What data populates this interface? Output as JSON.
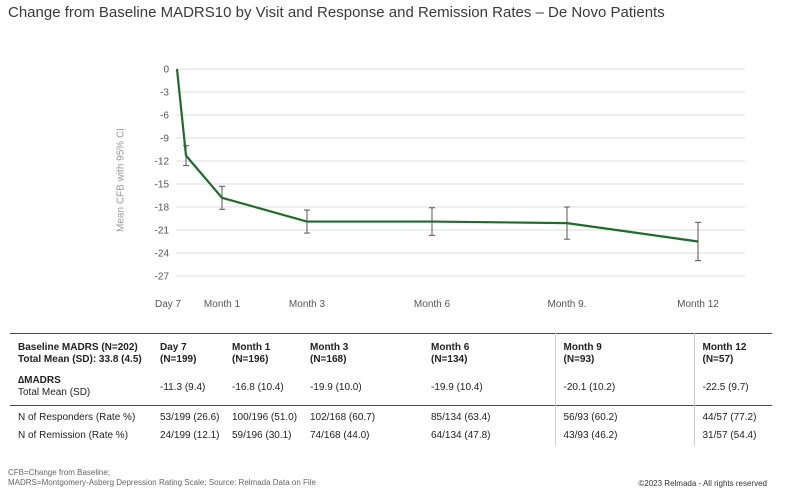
{
  "title": "Change from Baseline MADRS10 by Visit and Response and Remission Rates – De Novo Patients",
  "chart_data": {
    "type": "line",
    "ylabel": "Mean CFB with 95% CI",
    "xlabel": "",
    "categories": [
      "Day 7",
      "Month 1",
      "Month 3",
      "Month 6",
      "Month 9.",
      "Month 12"
    ],
    "x_days": [
      7,
      30,
      90,
      180,
      270,
      365
    ],
    "ylim": [
      -27,
      0
    ],
    "yticks": [
      0,
      -3,
      -6,
      -9,
      -12,
      -15,
      -18,
      -21,
      -24,
      -27
    ],
    "grid": true,
    "series": [
      {
        "name": "Mean CFB",
        "color": "#1f6b2a",
        "baseline": {
          "x": 0,
          "y": 0
        },
        "values": [
          -11.3,
          -16.8,
          -19.9,
          -19.9,
          -20.1,
          -22.5
        ],
        "ci_low": [
          -12.6,
          -18.3,
          -21.4,
          -21.7,
          -22.2,
          -25.0
        ],
        "ci_high": [
          -10.0,
          -15.3,
          -18.4,
          -18.1,
          -18.0,
          -20.0
        ]
      }
    ]
  },
  "table": {
    "col0_header_line1": "Baseline MADRS (N=202)",
    "col0_header_line2": "Total Mean (SD): 33.8 (4.5)",
    "delta_label_line1": "∆MADRS",
    "delta_label_line2": "Total Mean (SD)",
    "responders_label": "N of Responders (Rate %)",
    "remission_label": "N of Remission (Rate %)",
    "columns": [
      {
        "visit": "Day 7",
        "n": "(N=199)",
        "delta": "-11.3 (9.4)",
        "responders": "53/199 (26.6)",
        "remission": "24/199 (12.1)"
      },
      {
        "visit": "Month 1",
        "n": "(N=196)",
        "delta": "-16.8 (10.4)",
        "responders": "100/196 (51.0)",
        "remission": "59/196 (30.1)"
      },
      {
        "visit": "Month 3",
        "n": "(N=168)",
        "delta": "-19.9 (10.0)",
        "responders": "102/168 (60.7)",
        "remission": "74/168 (44.0)"
      },
      {
        "visit": "Month 6",
        "n": "(N=134)",
        "delta": "-19.9 (10.4)",
        "responders": "85/134 (63.4)",
        "remission": "64/134 (47.8)"
      },
      {
        "visit": "Month 9",
        "n": "(N=93)",
        "delta": "-20.1 (10.2)",
        "responders": "56/93 (60.2)",
        "remission": "43/93 (46.2)"
      },
      {
        "visit": "Month 12",
        "n": "(N=57)",
        "delta": "-22.5 (9.7)",
        "responders": "44/57 (77.2)",
        "remission": "31/57 (54.4)"
      }
    ]
  },
  "footnote_line1": "CFB=Change from Baseline;",
  "footnote_line2": "MADRS=Montgomery-Asberg Depression Rating Scale; Source: Relmada Data on File",
  "copyright": "©2023 Relmada - All rights reserved"
}
